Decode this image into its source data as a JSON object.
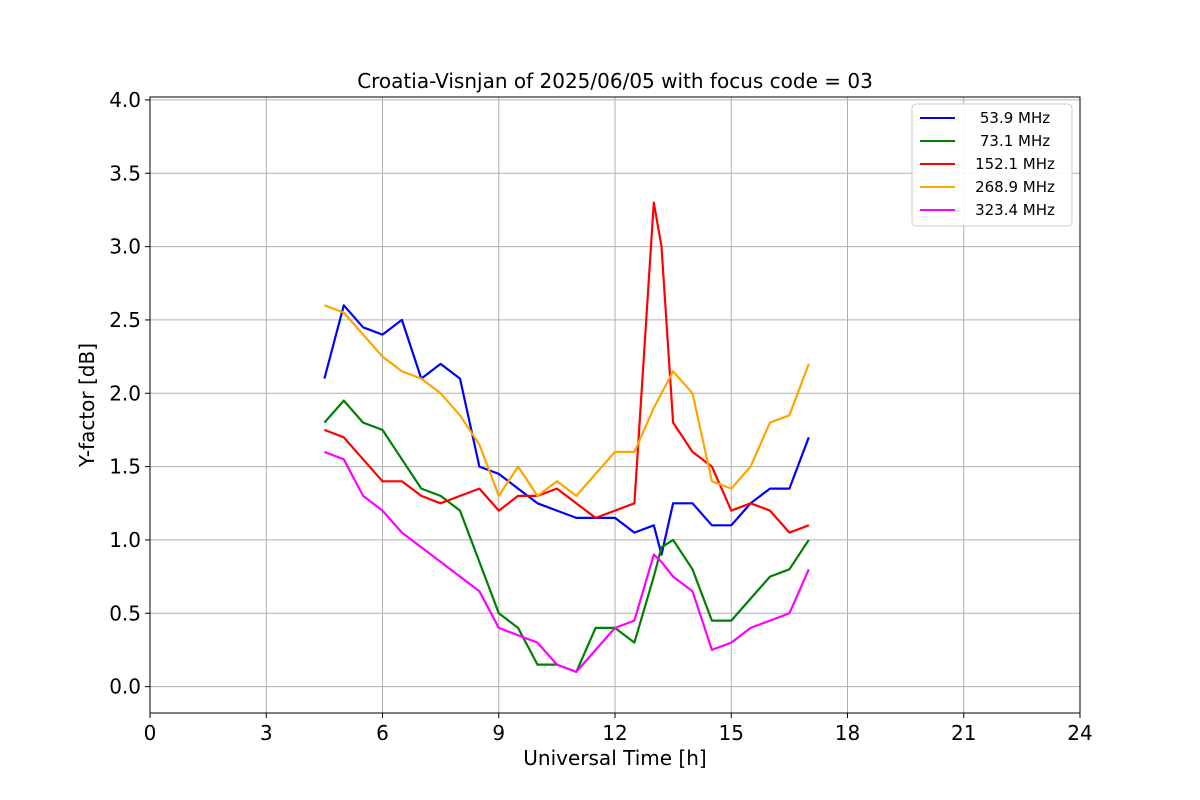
{
  "chart_data": {
    "type": "line",
    "title": "Croatia-Visnjan of 2025/06/05 with focus code = 03",
    "xlabel": "Universal Time [h]",
    "ylabel": "Y-factor [dB]",
    "xlim": [
      0,
      24
    ],
    "ylim": [
      -0.18,
      4.02
    ],
    "xticks": [
      "0",
      "3",
      "6",
      "9",
      "12",
      "15",
      "18",
      "21",
      "24"
    ],
    "yticks": [
      "0.0",
      "0.5",
      "1.0",
      "1.5",
      "2.0",
      "2.5",
      "3.0",
      "3.5",
      "4.0"
    ],
    "grid": true,
    "legend_position": "top-right",
    "x": [
      4.5,
      5.0,
      5.5,
      6.0,
      6.5,
      7.0,
      7.5,
      8.0,
      8.5,
      9.0,
      9.5,
      10.0,
      10.5,
      11.0,
      11.5,
      12.0,
      12.5,
      13.0,
      13.2,
      13.5,
      14.0,
      14.5,
      15.0,
      15.5,
      16.0,
      16.5,
      17.0
    ],
    "series": [
      {
        "name": " 53.9 MHz",
        "color": "#0000ff",
        "values": [
          2.1,
          2.6,
          2.45,
          2.4,
          2.5,
          2.1,
          2.2,
          2.1,
          1.5,
          1.45,
          1.35,
          1.25,
          1.2,
          1.15,
          1.15,
          1.15,
          1.05,
          1.1,
          0.9,
          1.25,
          1.25,
          1.1,
          1.1,
          1.25,
          1.35,
          1.35,
          1.7
        ]
      },
      {
        "name": " 73.1 MHz",
        "color": "#008000",
        "values": [
          1.8,
          1.95,
          1.8,
          1.75,
          1.55,
          1.35,
          1.3,
          1.2,
          0.85,
          0.5,
          0.4,
          0.15,
          0.15,
          0.1,
          0.4,
          0.4,
          0.3,
          0.75,
          0.95,
          1.0,
          0.8,
          0.45,
          0.45,
          0.6,
          0.75,
          0.8,
          1.0
        ]
      },
      {
        "name": " 152.1 MHz",
        "color": "#ff0000",
        "values": [
          1.75,
          1.7,
          1.55,
          1.4,
          1.4,
          1.3,
          1.25,
          1.3,
          1.35,
          1.2,
          1.3,
          1.3,
          1.35,
          1.25,
          1.15,
          1.2,
          1.25,
          3.3,
          3.0,
          1.8,
          1.6,
          1.5,
          1.2,
          1.25,
          1.2,
          1.05,
          1.1
        ]
      },
      {
        "name": " 268.9 MHz",
        "color": "#ffa500",
        "values": [
          2.6,
          2.55,
          2.4,
          2.25,
          2.15,
          2.1,
          2.0,
          1.85,
          1.65,
          1.3,
          1.5,
          1.3,
          1.4,
          1.3,
          1.45,
          1.6,
          1.6,
          1.9,
          2.0,
          2.15,
          2.0,
          1.4,
          1.35,
          1.5,
          1.8,
          1.85,
          2.2
        ]
      },
      {
        "name": " 323.4 MHz",
        "color": "#ff00ff",
        "values": [
          1.6,
          1.55,
          1.3,
          1.2,
          1.05,
          0.95,
          0.85,
          0.75,
          0.65,
          0.4,
          0.35,
          0.3,
          0.15,
          0.1,
          0.25,
          0.4,
          0.45,
          0.9,
          0.85,
          0.75,
          0.65,
          0.25,
          0.3,
          0.4,
          0.45,
          0.5,
          0.8
        ]
      }
    ]
  }
}
